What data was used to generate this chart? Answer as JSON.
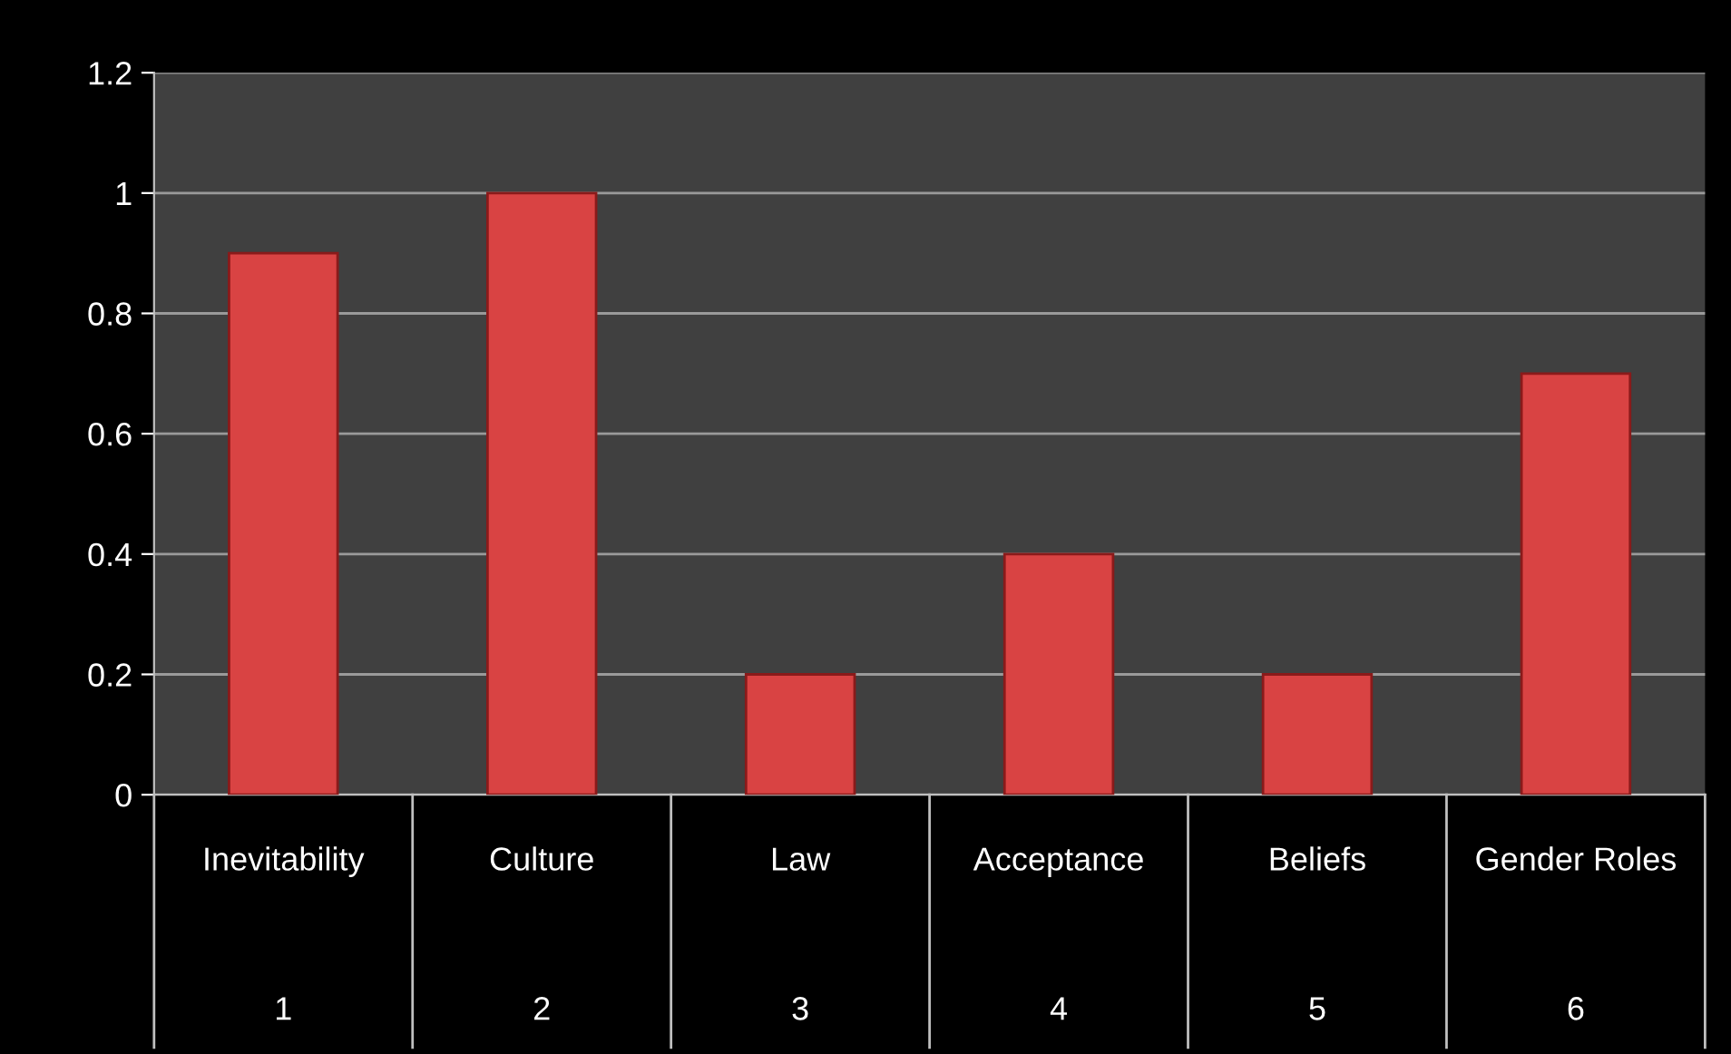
{
  "chart_data": {
    "type": "bar",
    "categories": [
      "Inevitability",
      "Culture",
      "Law",
      "Acceptance",
      "Beliefs",
      "Gender Roles"
    ],
    "values": [
      0.9,
      1.0,
      0.2,
      0.4,
      0.2,
      0.7
    ],
    "color": "#d94343",
    "ylim": [
      0,
      1.2
    ],
    "yticks": [
      0,
      0.2,
      0.4,
      0.6,
      0.8,
      1,
      1.2
    ],
    "grid": "y",
    "legend": false,
    "annotations": [
      "1",
      "2",
      "3",
      "4",
      "5",
      "6"
    ]
  }
}
